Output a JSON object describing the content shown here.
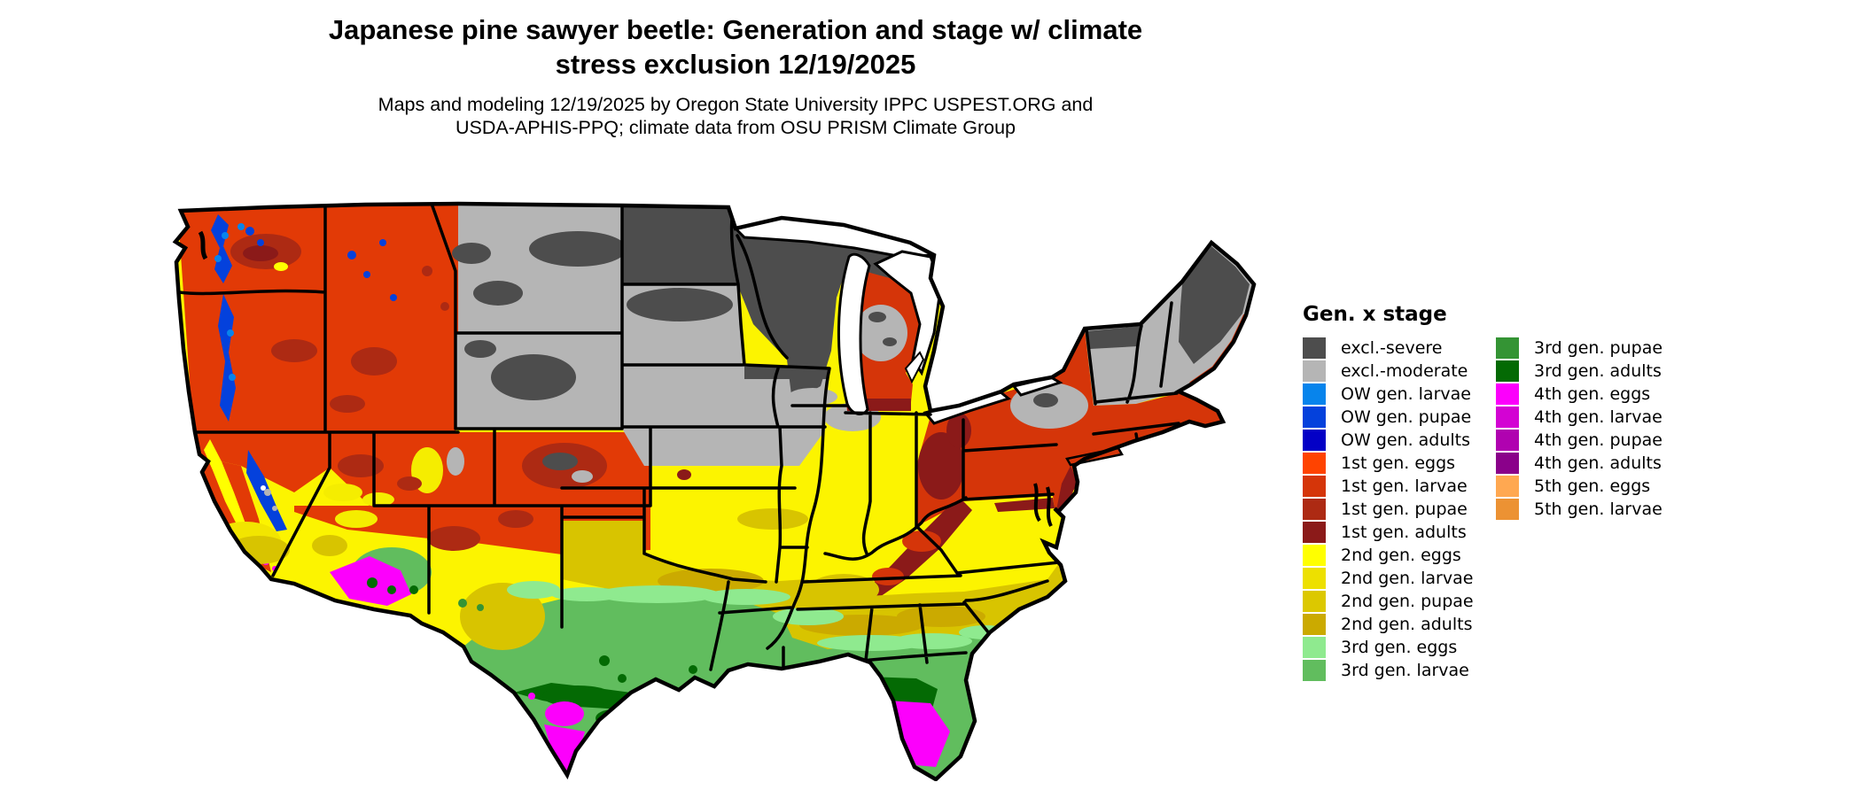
{
  "title": {
    "line1": "Japanese pine sawyer beetle: Generation and stage w/ climate",
    "line2": "stress exclusion 12/19/2025"
  },
  "subtitle": {
    "line1": "Maps and modeling 12/19/2025 by Oregon State University IPPC USPEST.ORG and",
    "line2": "USDA-APHIS-PPQ; climate data from OSU PRISM Climate Group"
  },
  "legend": {
    "title": "Gen. x stage",
    "columns": [
      {
        "entries": [
          {
            "label": "excl.-severe",
            "color": "#4D4D4D"
          },
          {
            "label": "excl.-moderate",
            "color": "#B5B5B5"
          },
          {
            "label": "OW gen. larvae",
            "color": "#0784EC"
          },
          {
            "label": "OW gen. pupae",
            "color": "#0441DC"
          },
          {
            "label": "OW gen. adults",
            "color": "#0300C6"
          },
          {
            "label": "1st gen. eggs",
            "color": "#FF4300"
          },
          {
            "label": "1st gen. larvae",
            "color": "#D53509"
          },
          {
            "label": "1st gen. pupae",
            "color": "#AD2A13"
          },
          {
            "label": "1st gen. adults",
            "color": "#8B1A19"
          },
          {
            "label": "2nd gen. eggs",
            "color": "#FFFF00"
          },
          {
            "label": "2nd gen. larvae",
            "color": "#EDE000"
          },
          {
            "label": "2nd gen. pupae",
            "color": "#DCC800"
          },
          {
            "label": "2nd gen. adults",
            "color": "#CBAA00"
          },
          {
            "label": "3rd gen. eggs",
            "color": "#8FEA8F"
          },
          {
            "label": "3rd gen. larvae",
            "color": "#61BD5E"
          }
        ]
      },
      {
        "entries": [
          {
            "label": "3rd gen. pupae",
            "color": "#349434"
          },
          {
            "label": "3rd gen. adults",
            "color": "#046A04"
          },
          {
            "label": "4th gen. eggs",
            "color": "#FC00FC"
          },
          {
            "label": "4th gen. larvae",
            "color": "#D303D3"
          },
          {
            "label": "4th gen. pupae",
            "color": "#B002B0"
          },
          {
            "label": "4th gen. adults",
            "color": "#8A018A"
          },
          {
            "label": "5th gen. eggs",
            "color": "#FFA851"
          },
          {
            "label": "5th gen. larvae",
            "color": "#EC9233"
          }
        ]
      }
    ]
  }
}
